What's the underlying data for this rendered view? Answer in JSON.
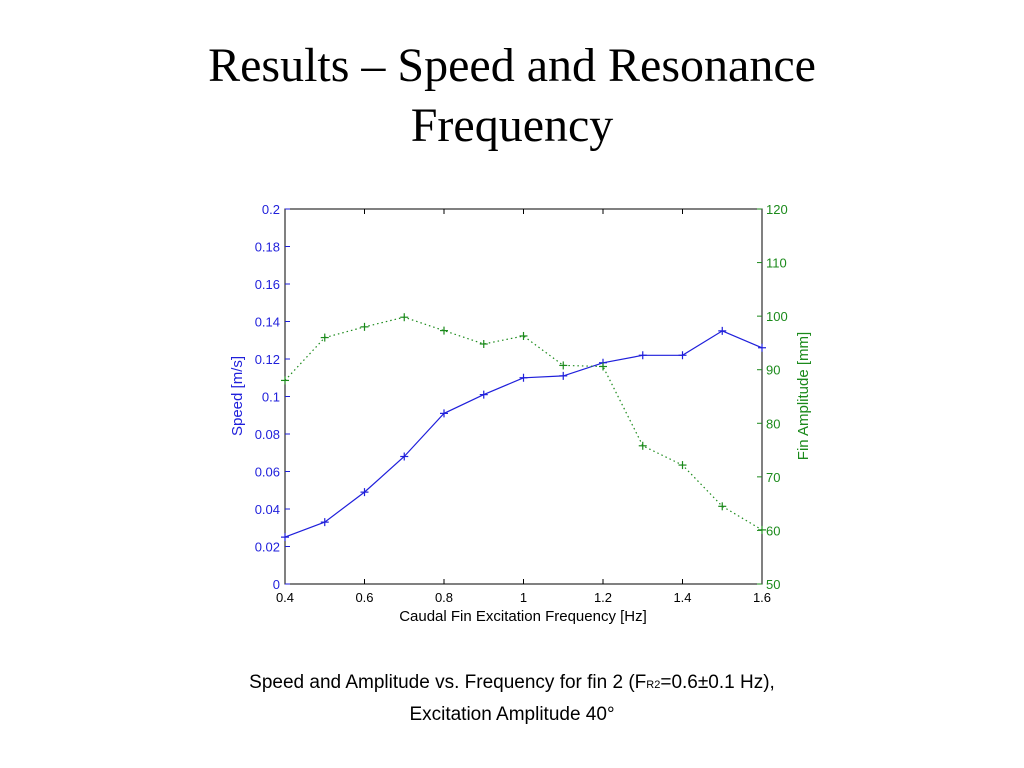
{
  "slide": {
    "title_line1": "Results – Speed and Resonance",
    "title_line2": "Frequency"
  },
  "caption": {
    "line1_a": "Speed and Amplitude vs. Frequency for fin 2 (F",
    "line1_sub": "R2",
    "line1_b": "=0.6±0.1 Hz),",
    "line2": "Excitation Amplitude 40°"
  },
  "chart_data": {
    "type": "line",
    "xlabel": "Caudal Fin Excitation Frequency [Hz]",
    "xlim": [
      0.4,
      1.6
    ],
    "xticks": [
      "0.4",
      "0.6",
      "0.8",
      "1",
      "1.2",
      "1.4",
      "1.6"
    ],
    "left_axis": {
      "label": "Speed [m/s]",
      "ylim": [
        0,
        0.2
      ],
      "ticks": [
        "0",
        "0.02",
        "0.04",
        "0.06",
        "0.08",
        "0.1",
        "0.12",
        "0.14",
        "0.16",
        "0.18",
        "0.2"
      ],
      "color": "#1f1fdb"
    },
    "right_axis": {
      "label": "Fin Amplitude [mm]",
      "ylim": [
        50,
        120
      ],
      "ticks": [
        "50",
        "60",
        "70",
        "80",
        "90",
        "100",
        "110",
        "120"
      ],
      "color": "#1b8a1b"
    },
    "x": [
      0.4,
      0.5,
      0.6,
      0.7,
      0.8,
      0.9,
      1.0,
      1.1,
      1.2,
      1.3,
      1.4,
      1.5,
      1.6
    ],
    "series": [
      {
        "axis": "left",
        "color": "#1f1fdb",
        "line": "solid",
        "marker": "+",
        "values": [
          0.025,
          0.033,
          0.049,
          0.068,
          0.091,
          0.101,
          0.11,
          0.111,
          0.118,
          0.122,
          0.122,
          0.135,
          0.126
        ]
      },
      {
        "axis": "right",
        "color": "#1b8a1b",
        "line": "dotted",
        "marker": "+",
        "values": [
          88,
          96,
          98,
          99.8,
          97.3,
          94.8,
          96.3,
          90.8,
          90.6,
          75.8,
          72.2,
          64.5,
          60.1
        ]
      }
    ],
    "grid": false,
    "legend": "none"
  }
}
